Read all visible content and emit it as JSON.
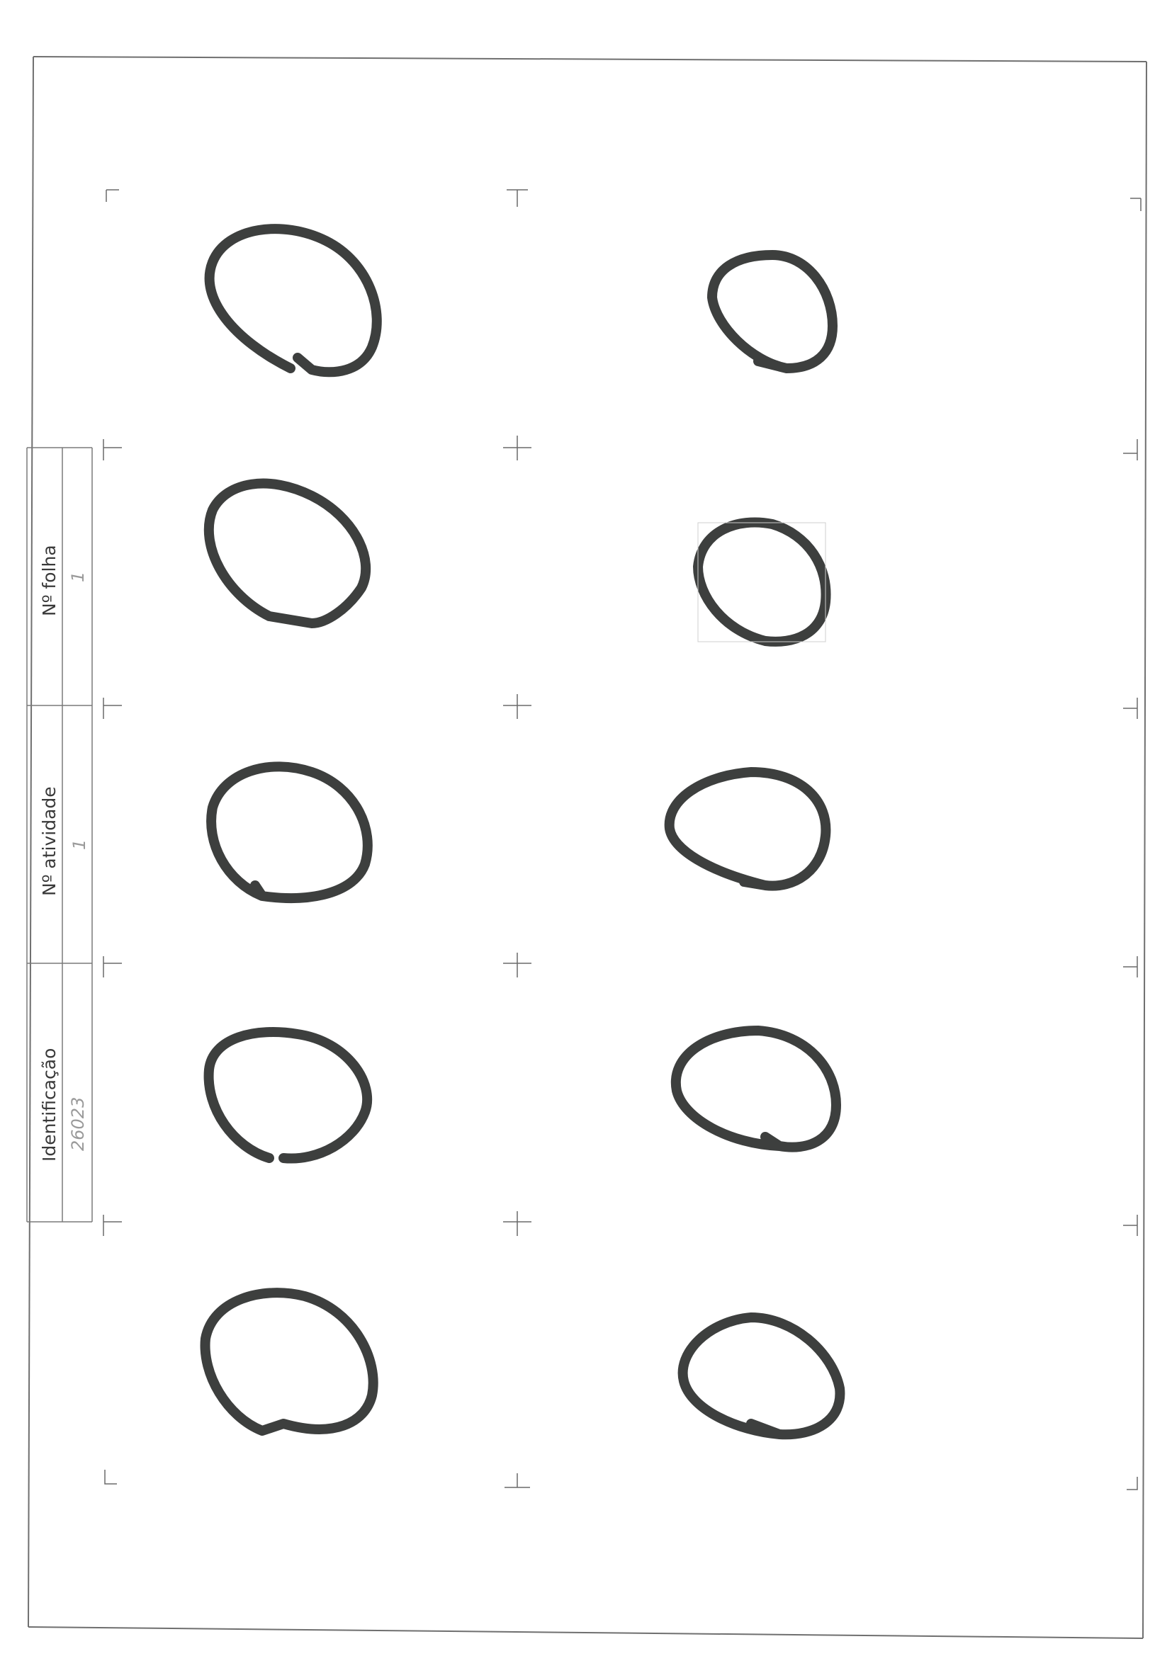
{
  "form": {
    "identificacao_label": "Identificação",
    "identificacao_value": "26023",
    "atividade_label": "Nº atividade",
    "atividade_value": "1",
    "folha_label": "Nº folha",
    "folha_value": "1"
  },
  "drawing": {
    "stroke_color": "#3d3f3e",
    "shape": "hand-drawn circle",
    "count": 10
  }
}
